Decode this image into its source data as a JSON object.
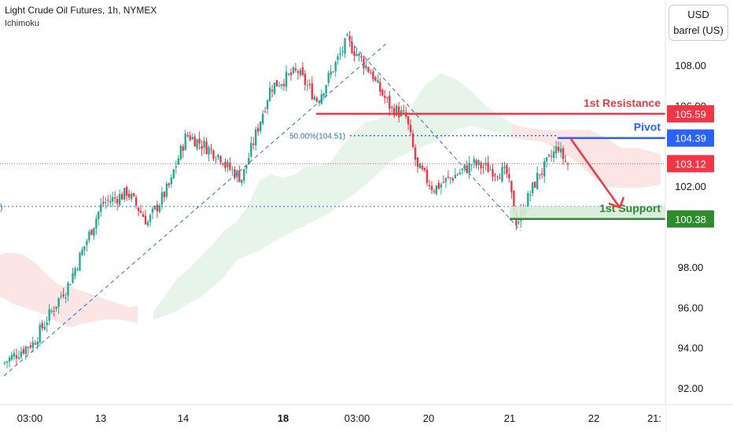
{
  "header": {
    "symbol_line": "Light Crude Oil Futures, 1h, NYMEX",
    "indicator": "Ichimoku"
  },
  "unit_selector": {
    "currency": "USD",
    "unit": "barrel (US)"
  },
  "colors": {
    "up": "#22ab94",
    "down": "#f23645",
    "resistance": "#f23645",
    "pivot": "#2962ff",
    "support": "#2e8b2e",
    "fib": "#2a6fc9",
    "cloud_green": "#e3f2e6",
    "cloud_red": "#fbe0e0"
  },
  "chart_data": {
    "type": "candlestick",
    "symbol": "Light Crude Oil Futures",
    "timeframe": "1h",
    "exchange": "NYMEX",
    "y_axis": {
      "ticks": [
        "92.00",
        "94.00",
        "96.00",
        "98.00",
        "102.00",
        "106.00",
        "108.00"
      ],
      "ylim": [
        91.5,
        110.0
      ]
    },
    "x_axis": {
      "ticks": [
        "03:00",
        "13",
        "14",
        "18",
        "03:00",
        "20",
        "21",
        "22",
        "21:"
      ],
      "bold": [
        "18"
      ]
    },
    "price_labels": [
      {
        "name": "1st Resistance",
        "value": "105.59",
        "color": "#f23645"
      },
      {
        "name": "Pivot",
        "value": "104.39",
        "color": "#2962ff"
      },
      {
        "name": "Last price",
        "value": "103.12",
        "color": "#f23645"
      },
      {
        "name": "1st Support",
        "value": "100.38",
        "color": "#2e8b2e"
      }
    ],
    "annotations": {
      "fib_label": "50.00%(104.51)",
      "left_edge_label": ")",
      "resistance_label": "1st Resistance",
      "pivot_label": "Pivot",
      "support_label": "1st Support"
    },
    "legs": [
      {
        "n": 12,
        "to": 94.2
      },
      {
        "n": 14,
        "to": 96.8
      },
      {
        "n": 16,
        "to": 101.0
      },
      {
        "n": 10,
        "to": 101.6
      },
      {
        "n": 10,
        "to": 100.2
      },
      {
        "n": 10,
        "to": 102.2
      },
      {
        "n": 6,
        "to": 104.4
      },
      {
        "n": 16,
        "to": 103.4
      },
      {
        "n": 8,
        "to": 102.4
      },
      {
        "n": 12,
        "to": 106.8
      },
      {
        "n": 12,
        "to": 107.7
      },
      {
        "n": 8,
        "to": 106.3
      },
      {
        "n": 12,
        "to": 109.0
      },
      {
        "n": 12,
        "to": 107.5
      },
      {
        "n": 8,
        "to": 105.8
      },
      {
        "n": 6,
        "to": 105.4
      },
      {
        "n": 5,
        "to": 102.8
      },
      {
        "n": 6,
        "to": 102.0
      },
      {
        "n": 16,
        "to": 103.0
      },
      {
        "n": 16,
        "to": 102.6
      },
      {
        "n": 4,
        "to": 100.3
      },
      {
        "n": 10,
        "to": 102.7
      },
      {
        "n": 8,
        "to": 104.0
      },
      {
        "n": 4,
        "to": 103.1
      }
    ],
    "start_price": 93.2,
    "cloud": {
      "segments": [
        {
          "kind": "red",
          "x": [
            0,
            7,
            15,
            30,
            45,
            60,
            75,
            90,
            105,
            120,
            135,
            150,
            165,
            175
          ],
          "top": [
            98.6,
            98.7,
            98.7,
            98.6,
            98.2,
            97.6,
            97.1,
            97.0,
            96.8,
            96.6,
            96.4,
            96.2,
            96.0,
            96.1
          ],
          "bot": [
            96.5,
            96.4,
            96.2,
            96.0,
            95.8,
            95.6,
            95.2,
            95.0,
            95.2,
            95.3,
            95.4,
            95.4,
            95.3,
            95.2
          ]
        },
        {
          "kind": "green",
          "x": [
            195,
            210,
            225,
            240,
            255,
            270,
            285,
            300,
            315,
            330,
            345,
            360,
            375,
            390,
            405,
            420,
            435,
            450,
            465,
            480,
            495,
            510,
            520
          ],
          "top": [
            95.8,
            96.6,
            97.4,
            97.9,
            98.5,
            99.1,
            99.8,
            100.2,
            101.0,
            102.3,
            102.6,
            102.4,
            102.6,
            103.0,
            103.0,
            103.2,
            104.0,
            104.7,
            105.2,
            105.3,
            105.6,
            105.7,
            105.8
          ],
          "bot": [
            95.4,
            95.6,
            95.8,
            96.2,
            96.5,
            97.0,
            97.5,
            98.3,
            98.6,
            98.8,
            99.2,
            99.5,
            99.8,
            100.1,
            100.4,
            100.7,
            101.2,
            101.6,
            102.1,
            102.6,
            103.2,
            103.5,
            103.7
          ]
        },
        {
          "kind": "green",
          "x": [
            520,
            540,
            560,
            580,
            600,
            620,
            640,
            650
          ],
          "top": [
            105.8,
            107.0,
            107.6,
            107.3,
            106.7,
            105.9,
            105.4,
            105.1
          ],
          "bot": [
            103.7,
            104.0,
            104.3,
            104.8,
            105.0,
            104.8,
            104.6,
            104.4
          ]
        },
        {
          "kind": "red",
          "x": [
            650,
            670,
            690,
            710,
            730,
            750,
            770,
            790,
            810,
            830,
            840
          ],
          "top": [
            105.1,
            104.9,
            104.8,
            104.8,
            104.8,
            104.8,
            104.4,
            103.9,
            103.9,
            103.7,
            103.6
          ],
          "bot": [
            104.4,
            104.3,
            104.2,
            103.8,
            103.3,
            102.6,
            102.0,
            101.9,
            101.9,
            102.0,
            102.1
          ]
        }
      ]
    },
    "trendlines": {
      "uptrend": [
        [
          5,
          92.6
        ],
        [
          492,
          109.1
        ]
      ],
      "downtrend": [
        [
          445,
          109.2
        ],
        [
          662,
          99.8
        ]
      ]
    },
    "levels": {
      "resistance": {
        "value": 105.59,
        "x_from": 402,
        "x_to": 846
      },
      "pivot": {
        "value": 104.39,
        "x_from": 709,
        "x_to": 846
      },
      "fib_50": {
        "value": 104.51,
        "x_from": 445,
        "x_to": 709
      },
      "support": {
        "value": 100.38,
        "x_from": 648,
        "x_to": 846
      },
      "support_zone": {
        "top": 101.0,
        "bottom": 100.38,
        "x_from": 648,
        "x_to": 846
      },
      "last_price": {
        "value": 103.12
      },
      "left_dotted": {
        "value": 101.0
      }
    },
    "projection": {
      "points": [
        [
          725,
          104.39
        ],
        [
          788,
          100.95
        ]
      ],
      "color": "#f23645"
    }
  }
}
